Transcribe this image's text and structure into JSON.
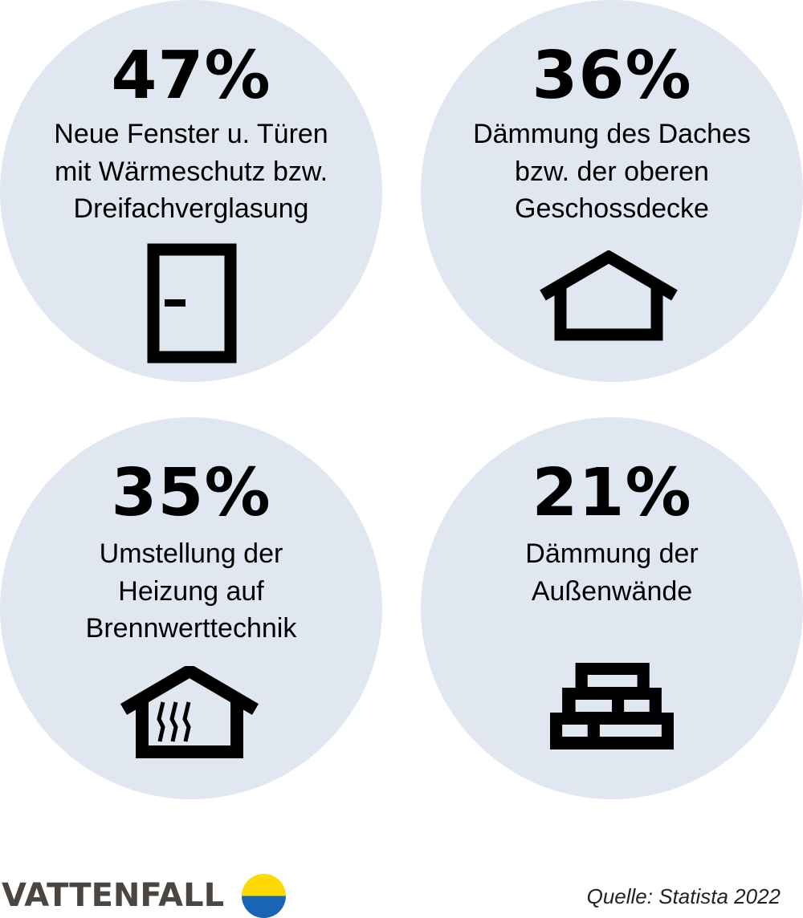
{
  "items": [
    {
      "value": "47%",
      "label": "Neue Fenster u. Türen\nmit Wärmeschutz bzw.\nDreifachverglasung",
      "icon": "door-icon"
    },
    {
      "value": "36%",
      "label": "Dämmung des Daches\nbzw. der oberen\nGeschossdecke",
      "icon": "roof-house-icon"
    },
    {
      "value": "35%",
      "label": "Umstellung der\nHeizung auf\nBrennwerttechnik",
      "icon": "heated-house-icon"
    },
    {
      "value": "21%",
      "label": "Dämmung der\nAußenwände",
      "icon": "brick-wall-icon"
    }
  ],
  "footer": {
    "brand": "VATTENFALL",
    "source": "Quelle: Statista 2022"
  },
  "colors": {
    "circle": "#e1e7f1",
    "logo_yellow": "#ffda00",
    "logo_blue": "#1a64b4",
    "brand_text": "#4a4541"
  }
}
